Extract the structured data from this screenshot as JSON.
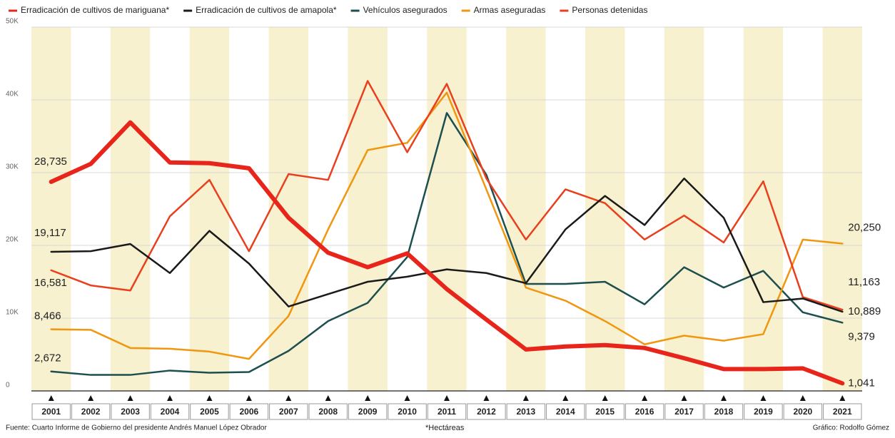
{
  "chart_data": {
    "type": "line",
    "categories": [
      "2001",
      "2002",
      "2003",
      "2004",
      "2005",
      "2006",
      "2007",
      "2008",
      "2009",
      "2010",
      "2011",
      "2012",
      "2013",
      "2014",
      "2015",
      "2016",
      "2017",
      "2018",
      "2019",
      "2020",
      "2021"
    ],
    "series": [
      {
        "name": "Erradicación de cultivos de mariguana*",
        "color": "#e8251b",
        "values": [
          28735,
          31200,
          36900,
          31400,
          31300,
          30600,
          23800,
          19000,
          17000,
          18900,
          14000,
          9800,
          5700,
          6100,
          6300,
          5900,
          4500,
          3000,
          3000,
          3100,
          1041
        ],
        "value_labels": [
          "28,735",
          null,
          null,
          null,
          null,
          null,
          null,
          null,
          null,
          null,
          null,
          null,
          null,
          null,
          null,
          null,
          null,
          null,
          null,
          null,
          "1,041"
        ]
      },
      {
        "name": "Erradicación de cultivos de amapola*",
        "color": "#1a1a1a",
        "values": [
          19117,
          19200,
          20200,
          16200,
          22000,
          17500,
          11600,
          13300,
          15000,
          15700,
          16700,
          16200,
          14800,
          22200,
          26800,
          22800,
          29200,
          23800,
          12200,
          12700,
          10889
        ],
        "value_labels": [
          "19,117",
          null,
          null,
          null,
          null,
          null,
          null,
          null,
          null,
          null,
          null,
          null,
          null,
          null,
          null,
          null,
          null,
          null,
          null,
          null,
          "10,889"
        ]
      },
      {
        "name": "Vehículos asegurados",
        "color": "#1d4f4f",
        "values": [
          2672,
          2200,
          2200,
          2800,
          2500,
          2600,
          5500,
          9600,
          12100,
          18400,
          38200,
          29700,
          14700,
          14700,
          15000,
          11900,
          17000,
          14200,
          16500,
          10800,
          9379
        ],
        "value_labels": [
          "2,672",
          null,
          null,
          null,
          null,
          null,
          null,
          null,
          null,
          null,
          null,
          null,
          null,
          null,
          null,
          null,
          null,
          null,
          null,
          null,
          "9,379"
        ]
      },
      {
        "name": "Armas aseguradas",
        "color": "#f0960f",
        "values": [
          8466,
          8400,
          5900,
          5800,
          5400,
          4400,
          10300,
          22200,
          33100,
          34100,
          41000,
          27700,
          14200,
          12400,
          9600,
          6400,
          7600,
          6900,
          7800,
          20800,
          20250
        ],
        "value_labels": [
          "8,466",
          null,
          null,
          null,
          null,
          null,
          null,
          null,
          null,
          null,
          null,
          null,
          null,
          null,
          null,
          null,
          null,
          null,
          null,
          null,
          "20,250"
        ]
      },
      {
        "name": "Personas detenidas",
        "color": "#e8401e",
        "values": [
          16581,
          14500,
          13800,
          24000,
          29000,
          19200,
          29800,
          29000,
          42600,
          32800,
          42200,
          29200,
          20800,
          27700,
          25800,
          20800,
          24100,
          20400,
          28800,
          12900,
          11163
        ],
        "value_labels": [
          "16,581",
          null,
          null,
          null,
          null,
          null,
          null,
          null,
          null,
          null,
          null,
          null,
          null,
          null,
          null,
          null,
          null,
          null,
          null,
          null,
          "11,163"
        ]
      }
    ],
    "ylim": [
      0,
      50000
    ],
    "yticks": [
      0,
      {
        "value": 10000,
        "label": "10K"
      },
      {
        "value": 20000,
        "label": "20K"
      },
      {
        "value": 30000,
        "label": "30K"
      },
      {
        "value": 40000,
        "label": "40K"
      },
      {
        "value": 50000,
        "label": "50K"
      }
    ],
    "grid": true,
    "source": "Fuente: Cuarto Informe de Gobierno del presidente Andrés Manuel López Obrador",
    "note": "*Hectáreas",
    "credit": "Gráfico: Rodolfo Gómez"
  }
}
